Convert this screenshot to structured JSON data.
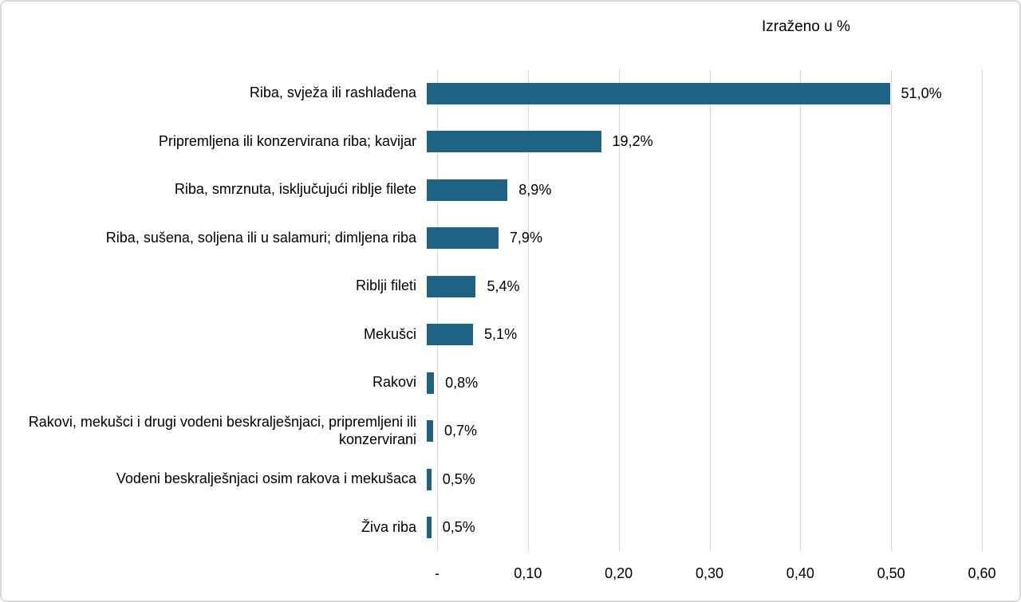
{
  "chart_data": {
    "type": "bar",
    "orientation": "horizontal",
    "title": "Izraženo u %",
    "categories": [
      "Riba, svježa ili rashlađena",
      "Pripremljena ili konzervirana riba; kavijar",
      "Riba, smrznuta, isključujući riblje filete",
      "Riba, sušena, soljena ili u salamuri; dimljena riba",
      "Riblji fileti",
      "Mekušci",
      "Rakovi",
      "Rakovi, mekušci i drugi vodeni beskralješnjaci, pripremljeni ili konzervirani",
      "Vodeni beskralješnjaci osim rakova i mekušaca",
      "Živa riba"
    ],
    "values_pct": [
      51.0,
      19.2,
      8.9,
      7.9,
      5.4,
      5.1,
      0.8,
      0.7,
      0.5,
      0.5
    ],
    "value_labels": [
      "51,0%",
      "19,2%",
      "8,9%",
      "7,9%",
      "5,4%",
      "5,1%",
      "0,8%",
      "0,7%",
      "0,5%",
      "0,5%"
    ],
    "x_axis": {
      "tick_labels": [
        "-",
        "0,10",
        "0,20",
        "0,30",
        "0,40",
        "0,50",
        "0,60"
      ],
      "min": 0,
      "max": 0.6,
      "max_pct": 60
    },
    "grid": true,
    "legend": "none",
    "bar_color": "#1e6383",
    "gridline_color": "#d9d9d9",
    "text_color": "#000000"
  }
}
